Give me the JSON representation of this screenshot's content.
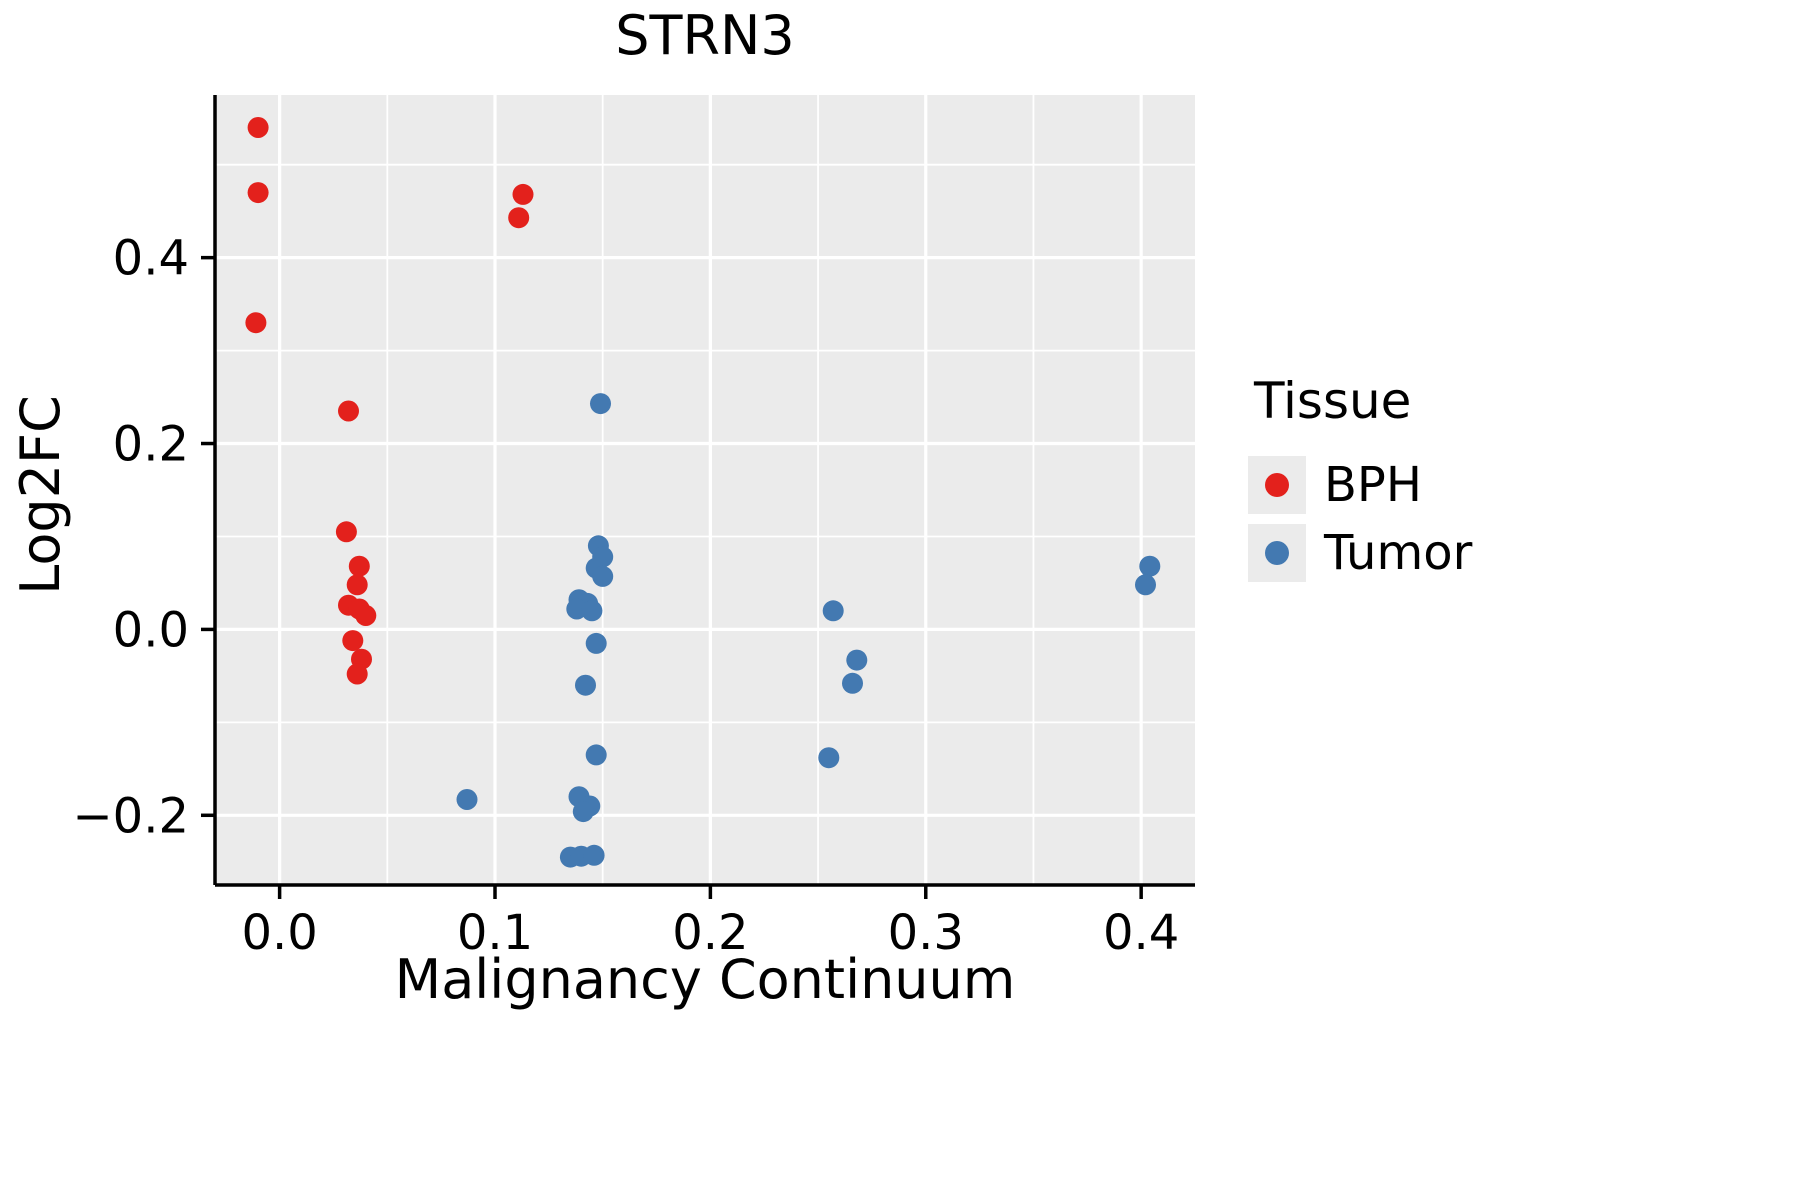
{
  "chart_data": {
    "type": "scatter",
    "title": "STRN3",
    "xlabel": "Malignancy Continuum",
    "ylabel": "Log2FC",
    "x_domain": [
      -0.03,
      0.425
    ],
    "y_domain": [
      -0.275,
      0.575
    ],
    "x_major_ticks": [
      0.0,
      0.1,
      0.2,
      0.3,
      0.4
    ],
    "x_minor_ticks": [
      0.05,
      0.15,
      0.25,
      0.35
    ],
    "y_major_ticks": [
      -0.2,
      0.0,
      0.2,
      0.4
    ],
    "y_minor_ticks": [
      -0.1,
      0.1,
      0.3,
      0.5
    ],
    "x_tick_labels": [
      "0.0",
      "0.1",
      "0.2",
      "0.3",
      "0.4"
    ],
    "y_tick_labels": [
      "−0.2",
      "0.0",
      "0.2",
      "0.4"
    ],
    "grid": true,
    "legend_position": "right",
    "plot_bg": "#ebebeb",
    "grid_color": "#ffffff",
    "axis_color": "#000000",
    "series": [
      {
        "name": "BPH",
        "color": "#e3211c",
        "points": [
          [
            -0.01,
            0.54
          ],
          [
            -0.01,
            0.47
          ],
          [
            -0.011,
            0.33
          ],
          [
            0.113,
            0.468
          ],
          [
            0.111,
            0.443
          ],
          [
            0.032,
            0.235
          ],
          [
            0.031,
            0.105
          ],
          [
            0.037,
            0.068
          ],
          [
            0.036,
            0.048
          ],
          [
            0.032,
            0.026
          ],
          [
            0.037,
            0.022
          ],
          [
            0.04,
            0.015
          ],
          [
            0.034,
            -0.012
          ],
          [
            0.038,
            -0.032
          ],
          [
            0.036,
            -0.048
          ]
        ]
      },
      {
        "name": "Tumor",
        "color": "#4379b1",
        "points": [
          [
            0.149,
            0.243
          ],
          [
            0.148,
            0.09
          ],
          [
            0.15,
            0.078
          ],
          [
            0.147,
            0.066
          ],
          [
            0.15,
            0.057
          ],
          [
            0.139,
            0.032
          ],
          [
            0.143,
            0.028
          ],
          [
            0.138,
            0.022
          ],
          [
            0.145,
            0.02
          ],
          [
            0.147,
            -0.015
          ],
          [
            0.142,
            -0.06
          ],
          [
            0.147,
            -0.135
          ],
          [
            0.087,
            -0.183
          ],
          [
            0.139,
            -0.18
          ],
          [
            0.144,
            -0.19
          ],
          [
            0.141,
            -0.196
          ],
          [
            0.135,
            -0.245
          ],
          [
            0.14,
            -0.244
          ],
          [
            0.146,
            -0.243
          ],
          [
            0.257,
            0.02
          ],
          [
            0.268,
            -0.033
          ],
          [
            0.266,
            -0.058
          ],
          [
            0.255,
            -0.138
          ],
          [
            0.404,
            0.068
          ],
          [
            0.402,
            0.048
          ]
        ]
      }
    ]
  },
  "legend": {
    "title": "Tissue",
    "entries": [
      {
        "label": "BPH",
        "color": "#e3211c"
      },
      {
        "label": "Tumor",
        "color": "#4379b1"
      }
    ]
  }
}
